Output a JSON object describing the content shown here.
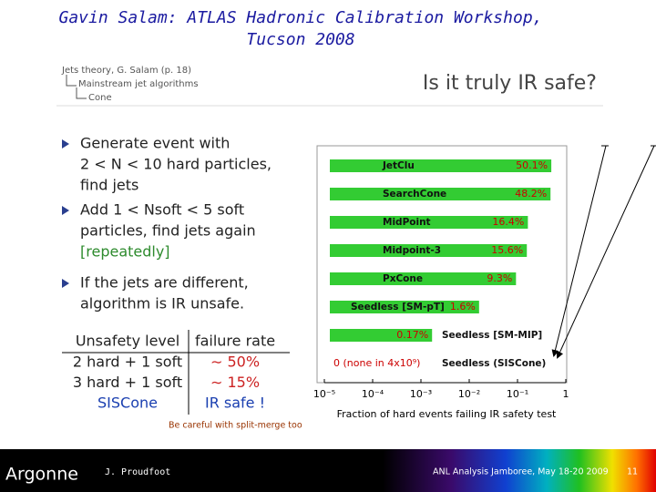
{
  "header": {
    "title": [
      "Gavin Salam: ATLAS Hadronic Calibration Workshop,",
      "Tucson 2008"
    ]
  },
  "breadcrumb": [
    "Jets theory, G. Salam (p. 18)",
    "Mainstream jet algorithms",
    "Cone"
  ],
  "slide_title": "Is it truly IR safe?",
  "bullets": [
    [
      "Generate event with",
      "2 < N < 10 hard particles,",
      "find jets"
    ],
    [
      "Add 1 < Nsoft < 5 soft",
      "particles, find jets again",
      "[repeatedly]"
    ],
    [
      "If the jets are different,",
      "algorithm is IR unsafe."
    ]
  ],
  "table": {
    "header": [
      "Unsafety level",
      "failure rate"
    ],
    "rows": [
      [
        "2 hard + 1 soft",
        "∼ 50%"
      ],
      [
        "3 hard + 1 soft",
        "∼ 15%"
      ],
      [
        "SISCone",
        "IR safe !"
      ]
    ]
  },
  "note": "Be careful with split-merge too",
  "chart_data": {
    "type": "bar",
    "orientation": "horizontal",
    "log_x": true,
    "color": "#33cc33",
    "label_color": "#cc0000",
    "x_label": "Fraction of hard events failing IR safety test",
    "categories": [
      "JetClu",
      "SearchCone",
      "MidPoint",
      "Midpoint-3",
      "PxCone",
      "Seedless [SM-pT]",
      "Seedless [SM-MIP]",
      "Seedless (SISCone)"
    ],
    "values": [
      0.501,
      0.482,
      0.164,
      0.156,
      0.093,
      0.016,
      0.0017,
      0
    ],
    "value_labels": [
      "50.1%",
      "48.2%",
      "16.4%",
      "15.6%",
      "9.3%",
      "1.6%",
      "0.17%",
      "0 (none in 4x10⁹)"
    ],
    "xlim": [
      1e-05,
      1
    ],
    "xticks": [
      {
        "value": 1e-05,
        "label": "10⁻⁵"
      },
      {
        "value": 0.0001,
        "label": "10⁻⁴"
      },
      {
        "value": 0.001,
        "label": "10⁻³"
      },
      {
        "value": 0.01,
        "label": "10⁻²"
      },
      {
        "value": 0.1,
        "label": "10⁻¹"
      },
      1
    ]
  },
  "footer": {
    "logo": "Argonne",
    "author": "J. Proudfoot",
    "event": "ANL Analysis Jamboree, May 18-20 2009",
    "page": "11"
  }
}
